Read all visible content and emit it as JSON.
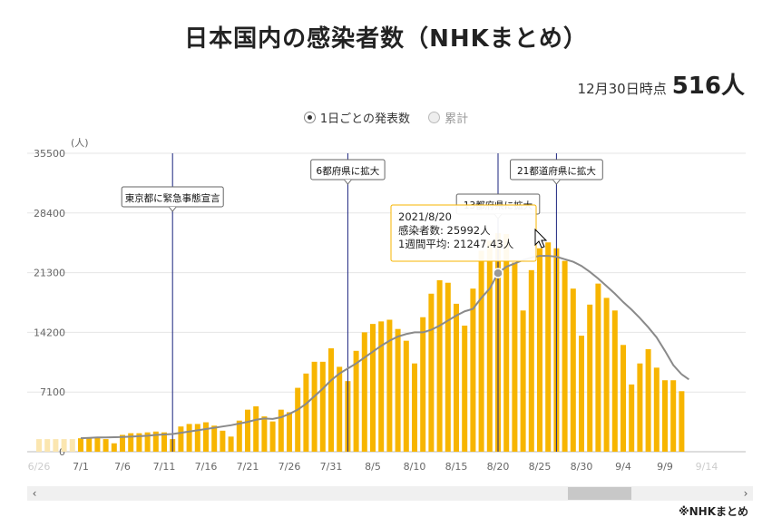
{
  "title": "日本国内の感染者数（NHKまとめ）",
  "as_of": {
    "label": "12月30日時点",
    "value": "516人"
  },
  "toggle": {
    "daily_label": "1日ごとの発表数",
    "cumulative_label": "累計"
  },
  "source": "※NHKまとめ",
  "scroll": {
    "left": "‹",
    "right": "›"
  },
  "colors": {
    "bar": "#f7b500",
    "bar_faded": "#fbe6b0",
    "avg_line": "#8a8a8a",
    "event_line": "#1a237e",
    "grid": "#e6e6e6",
    "tooltip_border": "#f7b500"
  },
  "chart_data": {
    "type": "bar",
    "ylabel": "(人)",
    "ylim": [
      0,
      35500
    ],
    "yticks": [
      0,
      7100,
      14200,
      21300,
      28400,
      35500
    ],
    "xticks": [
      "6/26",
      "7/1",
      "7/6",
      "7/11",
      "7/16",
      "7/21",
      "7/26",
      "7/31",
      "8/5",
      "8/10",
      "8/15",
      "8/20",
      "8/25",
      "8/30",
      "9/4",
      "9/9",
      "9/14"
    ],
    "series": [
      {
        "name": "感染者数",
        "dates": [
          "7/1",
          "7/2",
          "7/3",
          "7/4",
          "7/5",
          "7/6",
          "7/7",
          "7/8",
          "7/9",
          "7/10",
          "7/11",
          "7/12",
          "7/13",
          "7/14",
          "7/15",
          "7/16",
          "7/17",
          "7/18",
          "7/19",
          "7/20",
          "7/21",
          "7/22",
          "7/23",
          "7/24",
          "7/25",
          "7/26",
          "7/27",
          "7/28",
          "7/29",
          "7/30",
          "7/31",
          "8/1",
          "8/2",
          "8/3",
          "8/4",
          "8/5",
          "8/6",
          "8/7",
          "8/8",
          "8/9",
          "8/10",
          "8/11",
          "8/12",
          "8/13",
          "8/14",
          "8/15",
          "8/16",
          "8/17",
          "8/18",
          "8/19",
          "8/20",
          "8/21",
          "8/22",
          "8/23",
          "8/24",
          "8/25",
          "8/26",
          "8/27",
          "8/28",
          "8/29",
          "8/30",
          "8/31",
          "9/1",
          "9/2",
          "9/3",
          "9/4",
          "9/5",
          "9/6",
          "9/7",
          "9/8",
          "9/9",
          "9/10",
          "9/11"
        ],
        "values": [
          1600,
          1700,
          1700,
          1500,
          1000,
          2000,
          2200,
          2200,
          2300,
          2400,
          2300,
          1500,
          3000,
          3300,
          3300,
          3500,
          3100,
          2500,
          1800,
          3700,
          5000,
          5400,
          4200,
          3600,
          5000,
          4700,
          7600,
          9300,
          10700,
          10700,
          12300,
          10100,
          8400,
          12000,
          14200,
          15200,
          15500,
          15700,
          14600,
          13200,
          10500,
          16000,
          18800,
          20400,
          20100,
          17600,
          15000,
          19400,
          23900,
          25100,
          25992,
          25900,
          22500,
          16800,
          21600,
          24200,
          24900,
          24200,
          22700,
          19400,
          13800,
          17500,
          20000,
          18300,
          16800,
          12700,
          8000,
          10500,
          12200,
          10000,
          8500,
          8500,
          7200
        ]
      },
      {
        "name": "1週間平均",
        "values": [
          1600,
          1650,
          1700,
          1700,
          1720,
          1750,
          1800,
          1850,
          1900,
          2000,
          2050,
          2100,
          2250,
          2400,
          2550,
          2700,
          2850,
          3000,
          3150,
          3350,
          3550,
          3800,
          3950,
          3900,
          4100,
          4500,
          5000,
          5700,
          6600,
          7500,
          8500,
          9300,
          9900,
          10500,
          11200,
          11900,
          12600,
          13200,
          13700,
          14000,
          14200,
          14200,
          14500,
          15000,
          15600,
          16200,
          16700,
          17000,
          18300,
          19400,
          21247.43,
          22000,
          22400,
          22800,
          23100,
          23300,
          23300,
          23200,
          22900,
          22600,
          22100,
          21400,
          20600,
          19700,
          18800,
          17800,
          16900,
          15900,
          14800,
          13600,
          12000,
          10300,
          9200
        ]
      }
    ],
    "tooltip": {
      "date": "2021/8/20",
      "line1": "感染者数: 25992人",
      "line2": "1週間平均: 21247.43人"
    },
    "annotations": [
      {
        "date": "7/12",
        "text": "東京都に緊急事態宣言"
      },
      {
        "date": "8/2",
        "text": "6都府県に拡大"
      },
      {
        "date": "8/20",
        "text": "13都府県に拡大"
      },
      {
        "date": "8/27",
        "text": "21都道府県に拡大"
      }
    ]
  }
}
